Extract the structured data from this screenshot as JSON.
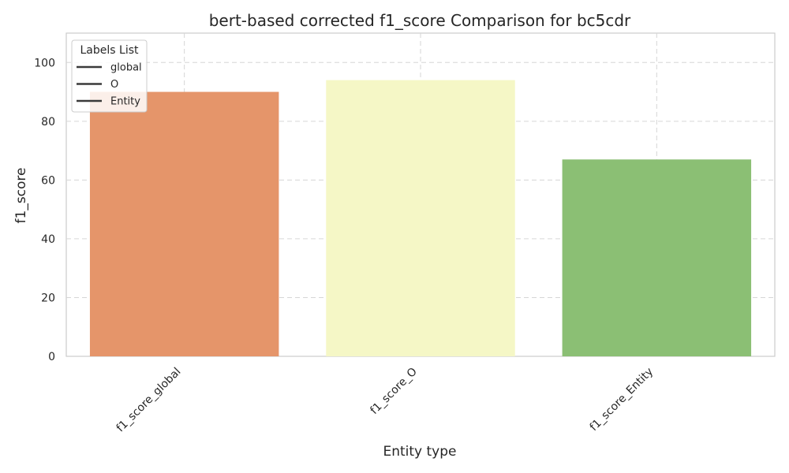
{
  "chart_data": {
    "type": "bar",
    "title": "bert-based corrected f1_score Comparison for bc5cdr",
    "xlabel": "Entity type",
    "ylabel": "f1_score",
    "categories": [
      "f1_score_global",
      "f1_score_O",
      "f1_score_Entity"
    ],
    "values": [
      90,
      94,
      67
    ],
    "colors": [
      "#e5956a",
      "#f5f7c6",
      "#8bbf74"
    ],
    "ylim": [
      0,
      110
    ],
    "yticks": [
      0,
      20,
      40,
      60,
      80,
      100
    ],
    "grid": true,
    "legend": {
      "title": "Labels List",
      "placement": "top-left",
      "entries": [
        "global",
        "O",
        "Entity"
      ]
    }
  }
}
